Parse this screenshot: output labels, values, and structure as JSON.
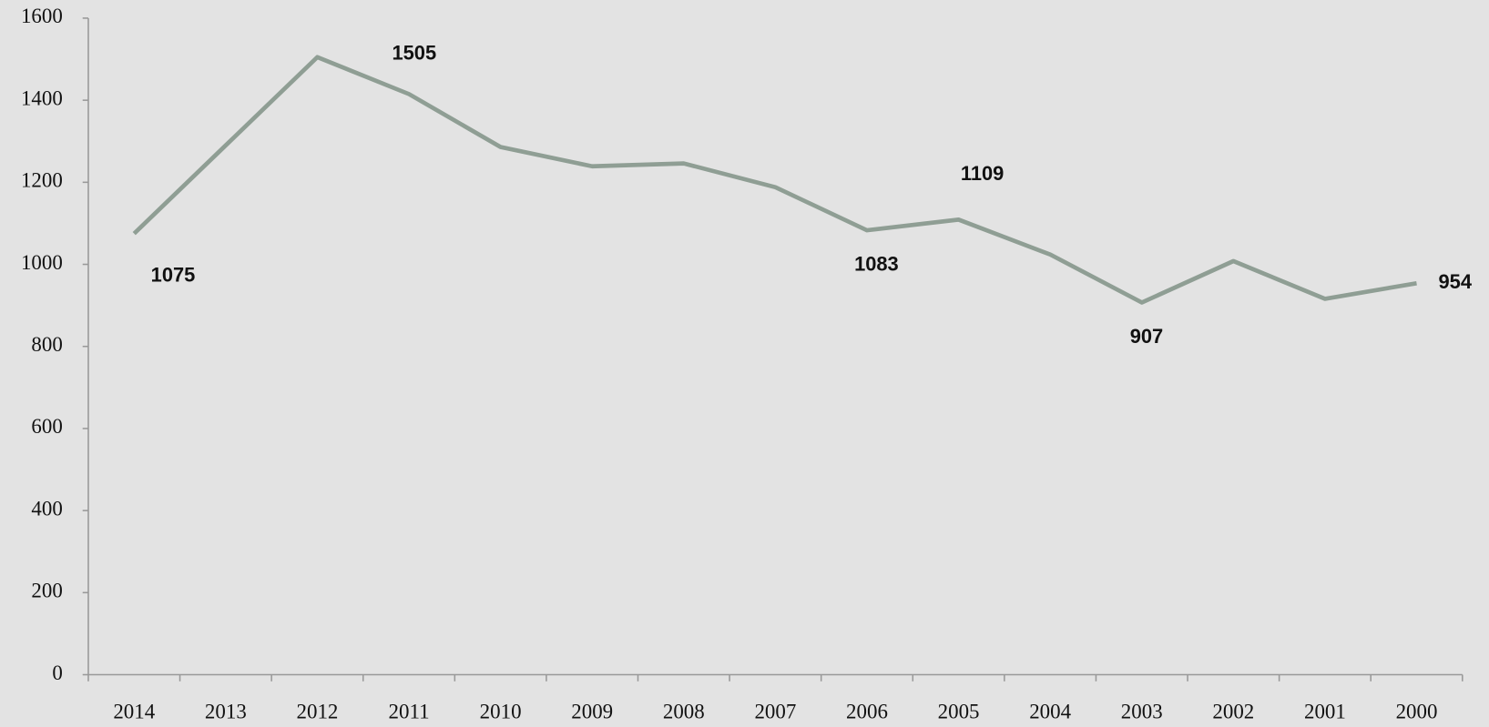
{
  "chart_data": {
    "type": "line",
    "categories": [
      "2014",
      "2013",
      "2012",
      "2011",
      "2010",
      "2009",
      "2008",
      "2007",
      "2006",
      "2005",
      "2004",
      "2003",
      "2002",
      "2001",
      "2000"
    ],
    "series": [
      {
        "color": "#8f9e94",
        "values": [
          1075,
          1290,
          1505,
          1415,
          1286,
          1239,
          1246,
          1188,
          1083,
          1109,
          1024,
          907,
          1008,
          916,
          954
        ],
        "value_labels": [
          "1075",
          null,
          "1505",
          null,
          null,
          null,
          null,
          null,
          "1083",
          "1109",
          null,
          "907",
          null,
          null,
          "954"
        ]
      }
    ],
    "ylim": [
      0,
      1600
    ],
    "yticks": [
      0,
      200,
      400,
      600,
      800,
      1000,
      1200,
      1400,
      1600
    ]
  }
}
